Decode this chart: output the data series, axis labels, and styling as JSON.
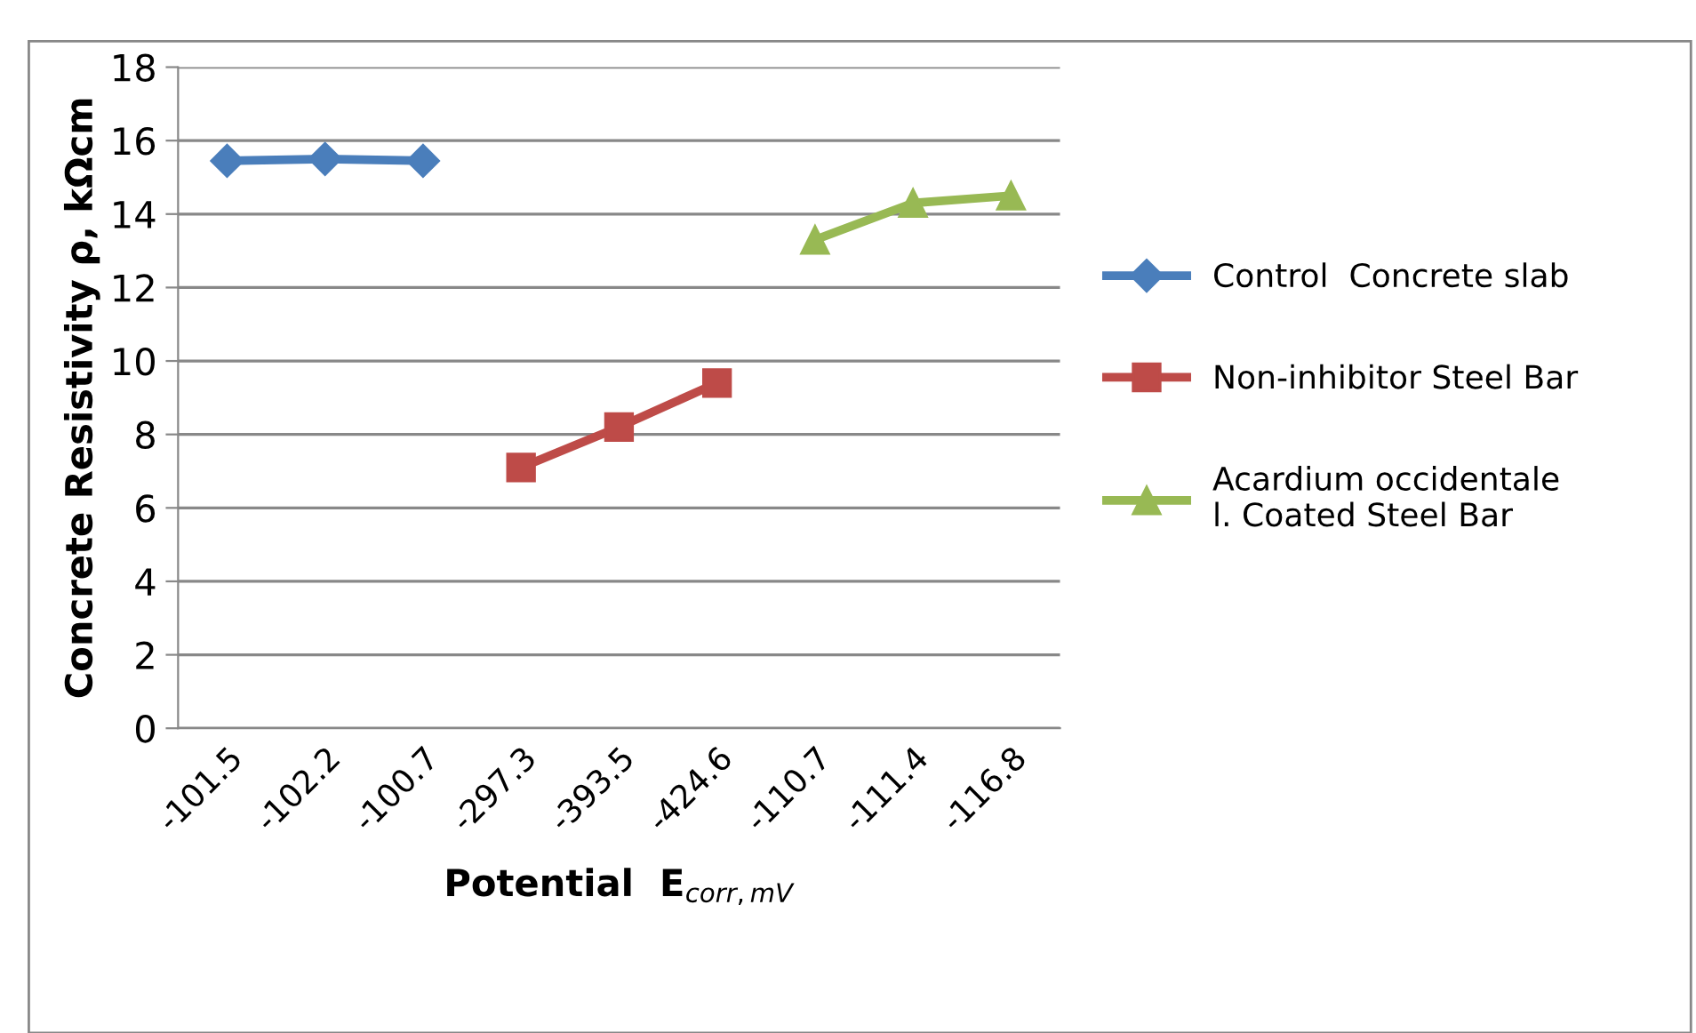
{
  "chart_data": {
    "type": "line",
    "xlabel": "Potential  E$_{corr,mV}$",
    "ylabel": "Concrete Resistivity ρ, kΩcm",
    "categories": [
      "-101.5",
      "-102.2",
      "-100.7",
      "-297.3",
      "-393.5",
      "-424.6",
      "-110.7",
      "-111.4",
      "-116.8"
    ],
    "series": [
      {
        "name": "Control  Concrete slab",
        "color": "#4a7ebb",
        "marker": "diamond",
        "values": [
          15.45,
          15.5,
          15.45,
          null,
          null,
          null,
          null,
          null,
          null
        ]
      },
      {
        "name": "Non-inhibitor Steel Bar",
        "color": "#be4b48",
        "marker": "square",
        "values": [
          null,
          null,
          null,
          7.1,
          8.2,
          9.4,
          null,
          null,
          null
        ]
      },
      {
        "name": "Acardium occidentale\nl. Coated Steel Bar",
        "color": "#98b954",
        "marker": "triangle",
        "values": [
          null,
          null,
          null,
          null,
          null,
          null,
          13.3,
          14.3,
          14.5
        ]
      }
    ],
    "ylim": [
      0,
      18
    ],
    "yticks": [
      0,
      2,
      4,
      6,
      8,
      10,
      12,
      14,
      16,
      18
    ],
    "grid": "y",
    "legend": "right",
    "line_style": "solid"
  }
}
